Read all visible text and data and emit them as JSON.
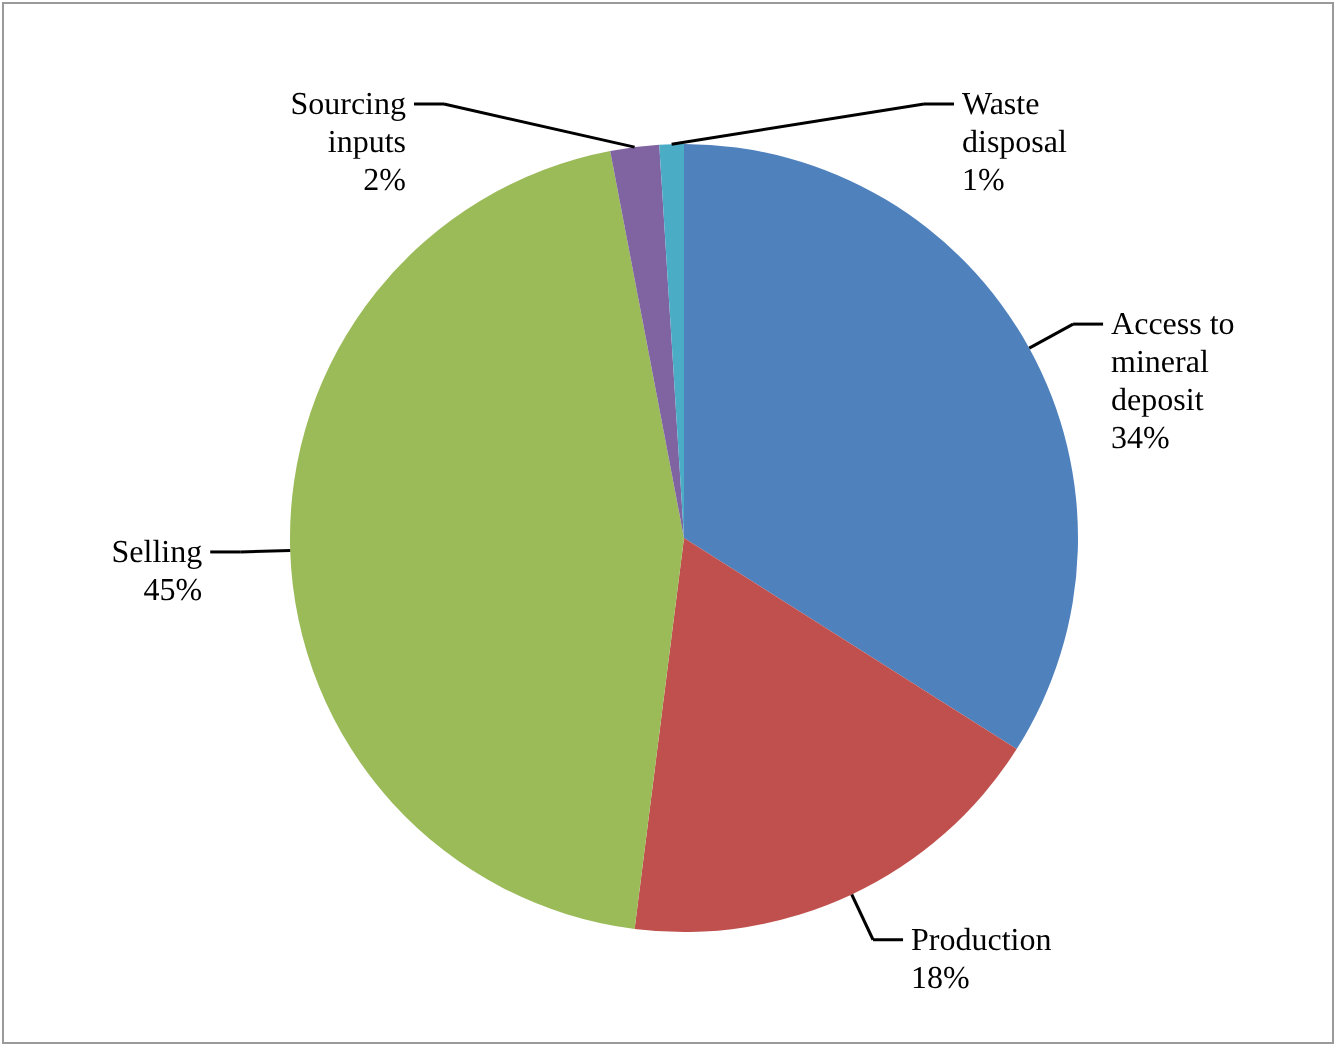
{
  "chart_data": {
    "type": "pie",
    "categories": [
      "Access to mineral deposit",
      "Production",
      "Selling",
      "Sourcing inputs",
      "Waste disposal"
    ],
    "values": [
      34,
      18,
      45,
      2,
      1
    ],
    "value_labels": [
      "34%",
      "18%",
      "45%",
      "2%",
      "1%"
    ],
    "colors": [
      "#4f81bd",
      "#c0504d",
      "#9bbb59",
      "#8064a2",
      "#4bacc6"
    ]
  }
}
